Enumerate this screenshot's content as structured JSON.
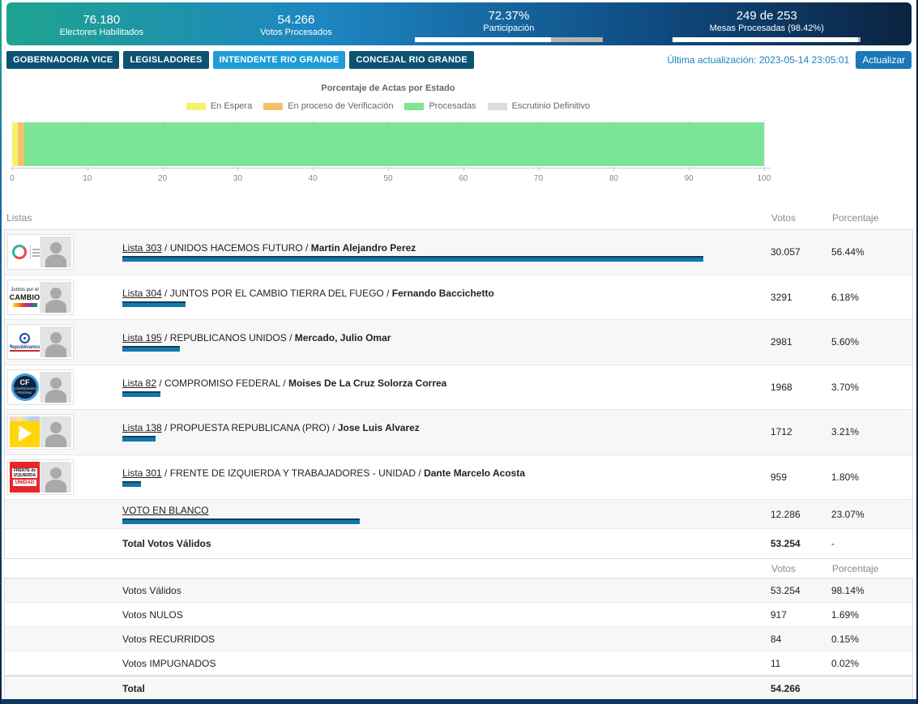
{
  "header": {
    "stats": [
      {
        "value": "76.180",
        "label": "Electores Habilitados",
        "progress": null
      },
      {
        "value": "54.266",
        "label": "Votos Procesados",
        "progress": null
      },
      {
        "value": "72.37%",
        "label": "Participación",
        "progress": 72.37
      },
      {
        "value": "249 de 253",
        "label": "Mesas Procesadas (98.42%)",
        "progress": 98.42
      }
    ]
  },
  "toolbar": {
    "tabs": [
      {
        "label": "GOBERNADOR/A VICE",
        "active": false
      },
      {
        "label": "LEGISLADORES",
        "active": false
      },
      {
        "label": "INTENDENTE RIO GRANDE",
        "active": true
      },
      {
        "label": "CONCEJAL RIO GRANDE",
        "active": false
      }
    ],
    "last_update": "Última actualización: 2023-05-14 23:05:01",
    "refresh_label": "Actualizar"
  },
  "chart_data": {
    "type": "bar",
    "orientation": "horizontal-stacked",
    "title": "Porcentaje de Actas por Estado",
    "xlabel": "",
    "ylabel": "",
    "xlim": [
      0,
      100
    ],
    "tick_step": 10,
    "grid": true,
    "legend_position": "top",
    "series": [
      {
        "name": "En Espera",
        "value": 0.79,
        "color": "#F7F06D"
      },
      {
        "name": "En proceso de Verificación",
        "value": 0.79,
        "color": "#F5C16C"
      },
      {
        "name": "Procesadas",
        "value": 98.42,
        "color": "#7CE495"
      },
      {
        "name": "Escrutinio Definitivo",
        "value": 0,
        "color": "#DCDCDC"
      }
    ]
  },
  "lists_table": {
    "section_label": "Listas",
    "votes_header": "Votos",
    "percent_header": "Porcentaje",
    "bar_color": "#1377AD",
    "rows": [
      {
        "lista": "Lista 303",
        "party": "UNIDOS HACEMOS FUTURO",
        "candidate": "Martin Alejandro Perez",
        "votes": "30.057",
        "percent": "56.44%",
        "percent_value": 56.44,
        "logo": "uhf"
      },
      {
        "lista": "Lista 304",
        "party": "JUNTOS POR EL CAMBIO TIERRA DEL FUEGO",
        "candidate": "Fernando Baccichetto",
        "votes": "3291",
        "percent": "6.18%",
        "percent_value": 6.18,
        "logo": "jxc"
      },
      {
        "lista": "Lista 195",
        "party": "REPUBLICANOS UNIDOS",
        "candidate": "Mercado, Julio Omar",
        "votes": "2981",
        "percent": "5.60%",
        "percent_value": 5.6,
        "logo": "ru"
      },
      {
        "lista": "Lista 82",
        "party": "COMPROMISO FEDERAL",
        "candidate": "Moises De La Cruz Solorza Correa",
        "votes": "1968",
        "percent": "3.70%",
        "percent_value": 3.7,
        "logo": "cf"
      },
      {
        "lista": "Lista 138",
        "party": "PROPUESTA REPUBLICANA (PRO)",
        "candidate": "Jose Luis Alvarez",
        "votes": "1712",
        "percent": "3.21%",
        "percent_value": 3.21,
        "logo": "pro"
      },
      {
        "lista": "Lista 301",
        "party": "FRENTE DE IZQUIERDA Y TRABAJADORES - UNIDAD",
        "candidate": "Dante Marcelo Acosta",
        "votes": "959",
        "percent": "1.80%",
        "percent_value": 1.8,
        "logo": "fit"
      }
    ],
    "blank_row": {
      "label": "VOTO EN BLANCO",
      "votes": "12.286",
      "percent": "23.07%",
      "percent_value": 23.07
    },
    "total_row": {
      "label": "Total Votos Válidos",
      "votes": "53.254",
      "percent": "-"
    }
  },
  "summary_table": {
    "votes_header": "Votos",
    "percent_header": "Porcentaje",
    "rows": [
      {
        "label": "Votos Válidos",
        "votes": "53.254",
        "percent": "98.14%",
        "is_total": false
      },
      {
        "label": "Votos NULOS",
        "votes": "917",
        "percent": "1.69%",
        "is_total": false
      },
      {
        "label": "Votos RECURRIDOS",
        "votes": "84",
        "percent": "0.15%",
        "is_total": false
      },
      {
        "label": "Votos IMPUGNADOS",
        "votes": "11",
        "percent": "0.02%",
        "is_total": false
      },
      {
        "label": "Total",
        "votes": "54.266",
        "percent": "",
        "is_total": true
      }
    ]
  },
  "logos": {
    "jxc_top": "Juntos por el",
    "jxc_bottom": "CAMBIO",
    "ru_text": "Republicanos",
    "cf_initials": "CF",
    "cf_text": "COMPROMISO FEDERAL",
    "pro_text": "pro",
    "fit_line1": "FRENTE de",
    "fit_line2": "IZQUIERDA",
    "fit_line3": "UNIDAD"
  }
}
